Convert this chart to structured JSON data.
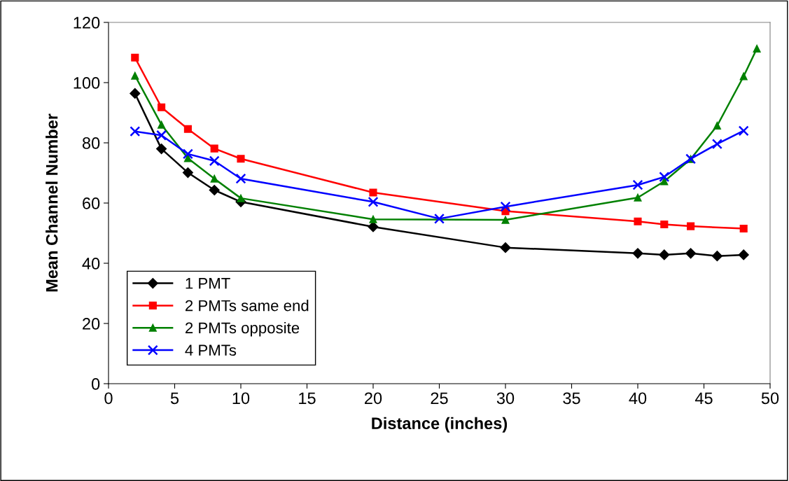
{
  "chart_data": {
    "type": "line",
    "xlabel": "Distance (inches)",
    "ylabel": "Mean Channel Number",
    "xlim": [
      0,
      50
    ],
    "xticks": [
      0,
      5,
      10,
      15,
      20,
      25,
      30,
      35,
      40,
      45,
      50
    ],
    "ylim": [
      0,
      120
    ],
    "yticks": [
      0,
      20,
      40,
      60,
      80,
      100,
      120
    ],
    "grid": false,
    "legend": "bottom left",
    "series": [
      {
        "name": "1 PMT",
        "color": "#000000",
        "marker": "diamond",
        "x": [
          2,
          4,
          6,
          8,
          10,
          20,
          30,
          40,
          42,
          44,
          46,
          48
        ],
        "values": [
          96.4,
          78.0,
          70.1,
          64.3,
          60.4,
          52.1,
          45.2,
          43.3,
          42.8,
          43.3,
          42.4,
          42.8
        ]
      },
      {
        "name": "2 PMTs same end",
        "color": "#ff0000",
        "marker": "square",
        "x": [
          2,
          4,
          6,
          8,
          10,
          20,
          30,
          40,
          42,
          44,
          48
        ],
        "values": [
          108.3,
          91.8,
          84.6,
          78.1,
          74.7,
          63.5,
          57.3,
          53.9,
          52.9,
          52.3,
          51.5
        ]
      },
      {
        "name": "2 PMTs opposite",
        "color": "#008000",
        "marker": "triangle",
        "x": [
          2,
          4,
          6,
          8,
          10,
          20,
          30,
          40,
          42,
          44,
          46,
          48,
          49
        ],
        "values": [
          102.3,
          86.0,
          74.9,
          68.1,
          61.6,
          54.6,
          54.4,
          61.8,
          67.2,
          74.6,
          85.7,
          102.1,
          111.3
        ]
      },
      {
        "name": "4 PMTs",
        "color": "#0000ff",
        "marker": "cross",
        "x": [
          2,
          4,
          6,
          8,
          10,
          20,
          25,
          30,
          40,
          42,
          44,
          46,
          48
        ],
        "values": [
          83.8,
          82.5,
          76.3,
          74.0,
          68.1,
          60.4,
          54.8,
          58.8,
          66.0,
          68.7,
          74.7,
          79.6,
          84.0
        ]
      }
    ]
  }
}
